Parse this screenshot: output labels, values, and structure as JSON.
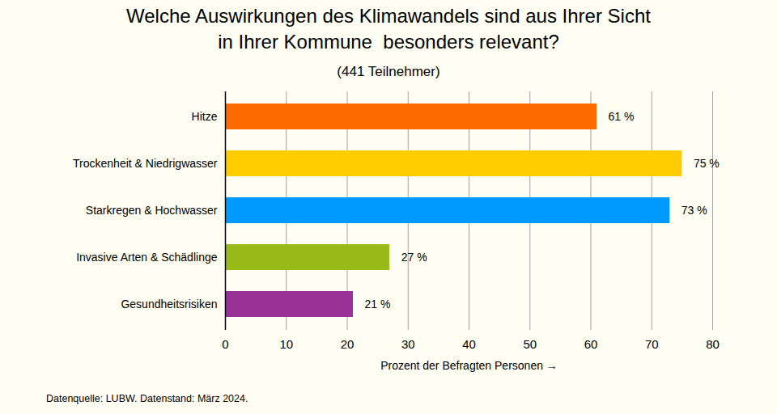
{
  "chart_data": {
    "type": "bar",
    "orientation": "horizontal",
    "title": "Welche Auswirkungen des Klimawandels sind aus Ihrer Sicht\nin Ihrer Kommune  besonders relevant?",
    "subtitle": "(441 Teilnehmer)",
    "categories": [
      "Hitze",
      "Trockenheit & Niedrigwasser",
      "Starkregen & Hochwasser",
      "Invasive Arten & Schädlinge",
      "Gesundheitsrisiken"
    ],
    "values": [
      61,
      75,
      73,
      27,
      21
    ],
    "value_labels": [
      "61 %",
      "75 %",
      "73 %",
      "27 %",
      "21 %"
    ],
    "colors": [
      "#ff6a00",
      "#ffcc00",
      "#0099ff",
      "#99bb1a",
      "#993399"
    ],
    "xlabel": "Prozent der Befragten Personen",
    "xlim": [
      0,
      80
    ],
    "xticks": [
      0,
      10,
      20,
      30,
      40,
      50,
      60,
      70,
      80
    ],
    "grid": true,
    "data_labels": true,
    "caption": "Datenquelle: LUBW. Datenstand: März 2024."
  }
}
